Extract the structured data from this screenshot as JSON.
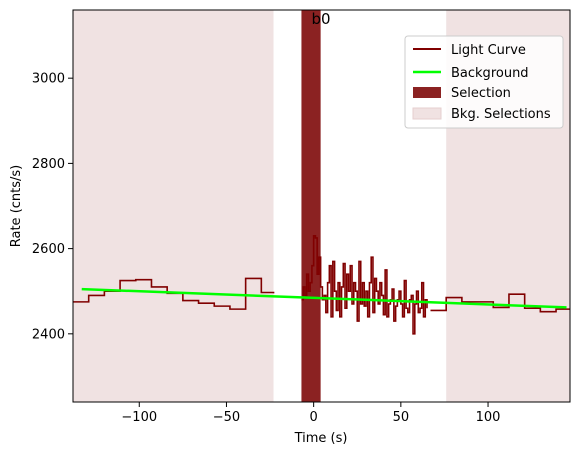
{
  "chart_data": {
    "type": "line",
    "title": "b0",
    "xlabel": "Time (s)",
    "ylabel": "Rate (cnts/s)",
    "xlim": [
      -138,
      147
    ],
    "ylim": [
      2240,
      3160
    ],
    "xticks": [
      -100,
      -50,
      0,
      50,
      100
    ],
    "xtick_labels": [
      "−100",
      "−50",
      "0",
      "50",
      "100"
    ],
    "yticks": [
      2400,
      2600,
      2800,
      3000
    ],
    "ytick_labels": [
      "2400",
      "2600",
      "2800",
      "3000"
    ],
    "legend_position": "top-right",
    "legend": [
      {
        "label": "Light Curve",
        "kind": "line",
        "color": "#800000"
      },
      {
        "label": "Background",
        "kind": "line",
        "color": "#00ff00"
      },
      {
        "label": "Selection",
        "kind": "patch",
        "color": "#8b2222"
      },
      {
        "label": "Bkg. Selections",
        "kind": "patch",
        "color": "#f0e2e2"
      }
    ],
    "bkg_selections": [
      [
        -138,
        -23
      ],
      [
        76,
        147
      ]
    ],
    "selection": [
      -7,
      4
    ],
    "background_line": {
      "x": [
        -133,
        145
      ],
      "y": [
        2505,
        2462
      ],
      "color": "#00ff00"
    },
    "light_curve": {
      "color": "#800000",
      "segments": [
        {
          "x": [
            -138,
            -129,
            -120,
            -111,
            -102,
            -93,
            -84,
            -75,
            -66,
            -57,
            -48,
            -39,
            -30,
            -23
          ],
          "y": [
            2475,
            2490,
            2500,
            2525,
            2527,
            2510,
            2495,
            2478,
            2472,
            2465,
            2458,
            2530,
            2497,
            2495
          ]
        },
        {
          "x": [
            -7,
            -6,
            -5,
            -4,
            -3,
            -2,
            -1,
            0,
            1,
            2,
            3,
            4,
            5,
            6,
            7,
            8,
            9,
            10,
            11,
            12,
            13,
            14,
            15,
            16,
            17,
            18,
            19,
            20,
            21,
            22,
            23,
            24,
            25,
            26,
            27,
            28,
            29,
            30,
            31,
            32,
            33,
            34,
            35,
            36,
            37,
            38,
            39,
            40,
            41,
            42,
            43,
            44,
            45,
            46,
            47,
            48,
            49,
            50,
            51,
            52,
            53,
            54,
            55,
            56,
            57,
            58,
            59,
            60,
            61,
            62,
            63,
            64,
            65
          ],
          "y": [
            2480,
            2510,
            2490,
            2540,
            2500,
            2520,
            2560,
            2630,
            2625,
            2540,
            2580,
            2510,
            2480,
            2490,
            2450,
            2520,
            2560,
            2440,
            2570,
            2500,
            2455,
            2520,
            2440,
            2510,
            2565,
            2460,
            2540,
            2500,
            2560,
            2470,
            2520,
            2500,
            2430,
            2570,
            2470,
            2520,
            2465,
            2500,
            2440,
            2520,
            2580,
            2450,
            2530,
            2500,
            2470,
            2520,
            2490,
            2445,
            2550,
            2440,
            2470,
            2480,
            2505,
            2430,
            2465,
            2480,
            2500,
            2470,
            2440,
            2525,
            2460,
            2450,
            2480,
            2490,
            2400,
            2470,
            2500,
            2450,
            2460,
            2520,
            2440,
            2480,
            2460
          ]
        },
        {
          "x": [
            67,
            76,
            85,
            94,
            103,
            112,
            121,
            130,
            139,
            147
          ],
          "y": [
            2455,
            2485,
            2475,
            2475,
            2462,
            2493,
            2460,
            2452,
            2458,
            2458
          ]
        }
      ]
    }
  }
}
